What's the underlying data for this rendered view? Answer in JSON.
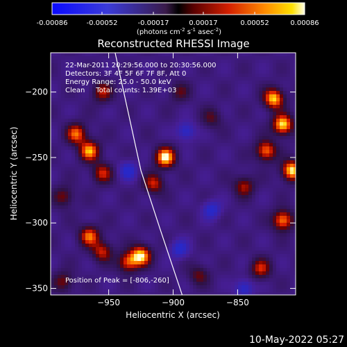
{
  "chart_data": {
    "type": "heatmap",
    "title": "Reconstructed RHESSI Image",
    "xlabel": "Heliocentric X (arcsec)",
    "ylabel": "Heliocentric Y (arcsec)",
    "xlim": [
      -995,
      -805
    ],
    "ylim": [
      -355,
      -170
    ],
    "x_ticks": [
      -950,
      -900,
      -850
    ],
    "y_ticks": [
      -200,
      -250,
      -300,
      -350
    ],
    "colorbar": {
      "label_parts": [
        "(photons cm",
        "-2",
        " s",
        "-1",
        " asec",
        "-2",
        ")"
      ],
      "ticks": [
        "-0.00086",
        "-0.00052",
        "-0.00017",
        "0.00017",
        "0.00052",
        "0.00086"
      ],
      "range": [
        -0.00086,
        0.00086
      ]
    },
    "annotations": [
      "22-Mar-2011 20:29:56.000 to 20:30:56.000",
      "Detectors: 3F 4F 5F 6F 7F 8F, Att 0",
      "Energy Range: 25.0 - 50.0 keV",
      "Clean     Total counts: 1.39E+03"
    ],
    "peak_label": "Position of Peak = [-806,-260]",
    "limb_curve": [
      [
        -945,
        -170
      ],
      [
        -935,
        -215
      ],
      [
        -925,
        -260
      ],
      [
        -910,
        -305
      ],
      [
        -893,
        -355
      ]
    ],
    "hotspots": [
      {
        "x": -906,
        "y": -250,
        "level": 1.0
      },
      {
        "x": -915,
        "y": -270,
        "level": 0.6
      },
      {
        "x": -815,
        "y": -225,
        "level": 1.0
      },
      {
        "x": -822,
        "y": -205,
        "level": 0.95
      },
      {
        "x": -828,
        "y": -245,
        "level": 0.8
      },
      {
        "x": -808,
        "y": -260,
        "level": 1.0
      },
      {
        "x": -965,
        "y": -245,
        "level": 0.85
      },
      {
        "x": -975,
        "y": -232,
        "level": 0.75
      },
      {
        "x": -955,
        "y": -262,
        "level": 0.6
      },
      {
        "x": -955,
        "y": -200,
        "level": 0.55
      },
      {
        "x": -925,
        "y": -325,
        "level": 0.95
      },
      {
        "x": -935,
        "y": -330,
        "level": 0.7
      },
      {
        "x": -965,
        "y": -310,
        "level": 0.75
      },
      {
        "x": -955,
        "y": -322,
        "level": 0.6
      },
      {
        "x": -815,
        "y": -298,
        "level": 0.85
      },
      {
        "x": -832,
        "y": -335,
        "level": 0.6
      },
      {
        "x": -870,
        "y": -220,
        "level": 0.35
      },
      {
        "x": -880,
        "y": -340,
        "level": 0.4
      },
      {
        "x": -985,
        "y": -280,
        "level": 0.45
      },
      {
        "x": -985,
        "y": -345,
        "level": 0.45
      },
      {
        "x": -845,
        "y": -272,
        "level": 0.55
      },
      {
        "x": -895,
        "y": -200,
        "level": 0.35
      }
    ],
    "coldspots": [
      {
        "x": -935,
        "y": -260
      },
      {
        "x": -890,
        "y": -230
      },
      {
        "x": -870,
        "y": -290
      },
      {
        "x": -895,
        "y": -320
      },
      {
        "x": -845,
        "y": -350
      }
    ],
    "grid": false
  },
  "footer_date": "10-May-2022 05:27"
}
